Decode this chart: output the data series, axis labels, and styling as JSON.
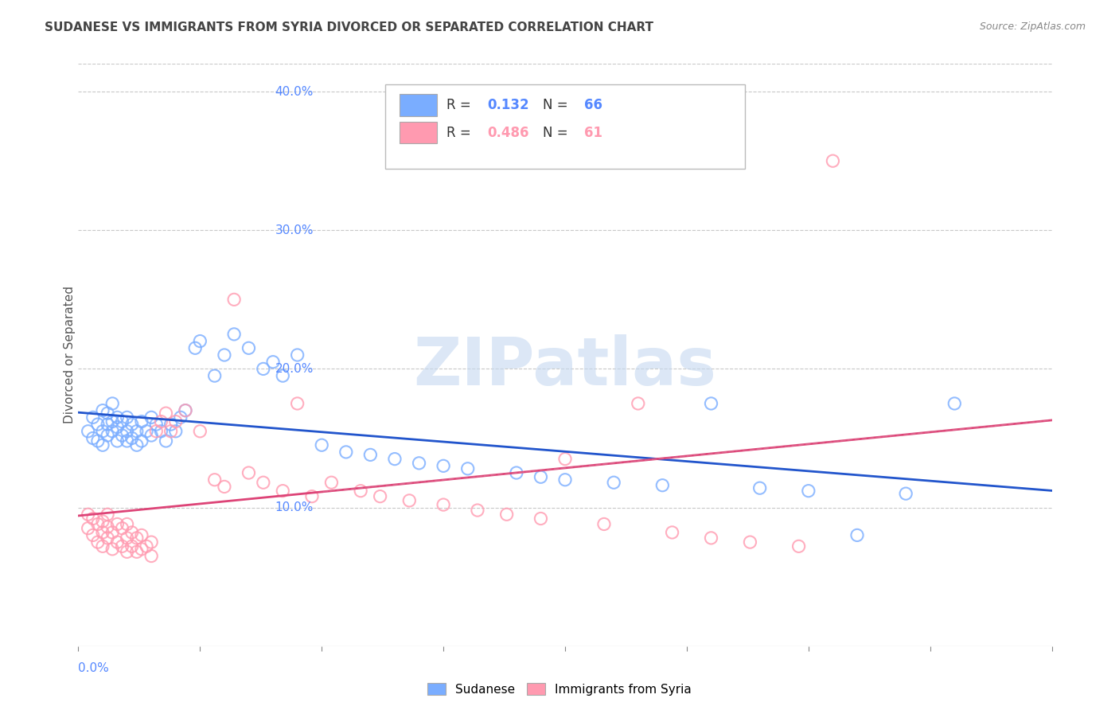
{
  "title": "SUDANESE VS IMMIGRANTS FROM SYRIA DIVORCED OR SEPARATED CORRELATION CHART",
  "source": "Source: ZipAtlas.com",
  "ylabel": "Divorced or Separated",
  "right_yticks": [
    "10.0%",
    "20.0%",
    "30.0%",
    "40.0%"
  ],
  "right_ytick_vals": [
    0.1,
    0.2,
    0.3,
    0.4
  ],
  "xlim": [
    0.0,
    0.2
  ],
  "ylim": [
    0.0,
    0.42
  ],
  "blue_color": "#7aadff",
  "pink_color": "#ff9ab0",
  "trend_blue": "#2255cc",
  "trend_pink": "#dd4477",
  "trend_pink_dashed": "#dd7799",
  "watermark_color": "#c5d8f0",
  "grid_color": "#c8c8c8",
  "title_color": "#444444",
  "axis_label_color": "#5588ff",
  "sudanese_x": [
    0.002,
    0.003,
    0.003,
    0.004,
    0.004,
    0.005,
    0.005,
    0.005,
    0.006,
    0.006,
    0.006,
    0.007,
    0.007,
    0.007,
    0.008,
    0.008,
    0.008,
    0.009,
    0.009,
    0.01,
    0.01,
    0.01,
    0.011,
    0.011,
    0.012,
    0.012,
    0.013,
    0.013,
    0.014,
    0.015,
    0.015,
    0.016,
    0.017,
    0.018,
    0.019,
    0.02,
    0.021,
    0.022,
    0.024,
    0.025,
    0.028,
    0.03,
    0.032,
    0.035,
    0.038,
    0.04,
    0.042,
    0.045,
    0.05,
    0.055,
    0.06,
    0.065,
    0.07,
    0.075,
    0.08,
    0.09,
    0.095,
    0.1,
    0.11,
    0.12,
    0.13,
    0.14,
    0.15,
    0.16,
    0.17,
    0.18
  ],
  "sudanese_y": [
    0.155,
    0.15,
    0.165,
    0.148,
    0.16,
    0.145,
    0.155,
    0.17,
    0.152,
    0.16,
    0.168,
    0.155,
    0.162,
    0.175,
    0.148,
    0.158,
    0.165,
    0.152,
    0.162,
    0.148,
    0.155,
    0.165,
    0.15,
    0.16,
    0.145,
    0.155,
    0.148,
    0.162,
    0.155,
    0.152,
    0.165,
    0.16,
    0.155,
    0.148,
    0.16,
    0.155,
    0.165,
    0.17,
    0.215,
    0.22,
    0.195,
    0.21,
    0.225,
    0.215,
    0.2,
    0.205,
    0.195,
    0.21,
    0.145,
    0.14,
    0.138,
    0.135,
    0.132,
    0.13,
    0.128,
    0.125,
    0.122,
    0.12,
    0.118,
    0.116,
    0.175,
    0.114,
    0.112,
    0.08,
    0.11,
    0.175
  ],
  "syria_x": [
    0.002,
    0.002,
    0.003,
    0.003,
    0.004,
    0.004,
    0.005,
    0.005,
    0.005,
    0.006,
    0.006,
    0.006,
    0.007,
    0.007,
    0.008,
    0.008,
    0.009,
    0.009,
    0.01,
    0.01,
    0.01,
    0.011,
    0.011,
    0.012,
    0.012,
    0.013,
    0.013,
    0.014,
    0.015,
    0.015,
    0.016,
    0.017,
    0.018,
    0.019,
    0.02,
    0.022,
    0.025,
    0.028,
    0.03,
    0.032,
    0.035,
    0.038,
    0.042,
    0.045,
    0.048,
    0.052,
    0.058,
    0.062,
    0.068,
    0.075,
    0.082,
    0.088,
    0.095,
    0.1,
    0.108,
    0.115,
    0.122,
    0.13,
    0.138,
    0.148,
    0.155
  ],
  "syria_y": [
    0.085,
    0.095,
    0.08,
    0.092,
    0.075,
    0.088,
    0.072,
    0.082,
    0.09,
    0.078,
    0.086,
    0.095,
    0.07,
    0.082,
    0.075,
    0.088,
    0.072,
    0.085,
    0.068,
    0.078,
    0.088,
    0.072,
    0.082,
    0.068,
    0.078,
    0.07,
    0.08,
    0.072,
    0.065,
    0.075,
    0.155,
    0.162,
    0.168,
    0.155,
    0.162,
    0.17,
    0.155,
    0.12,
    0.115,
    0.25,
    0.125,
    0.118,
    0.112,
    0.175,
    0.108,
    0.118,
    0.112,
    0.108,
    0.105,
    0.102,
    0.098,
    0.095,
    0.092,
    0.135,
    0.088,
    0.175,
    0.082,
    0.078,
    0.075,
    0.072,
    0.35
  ]
}
